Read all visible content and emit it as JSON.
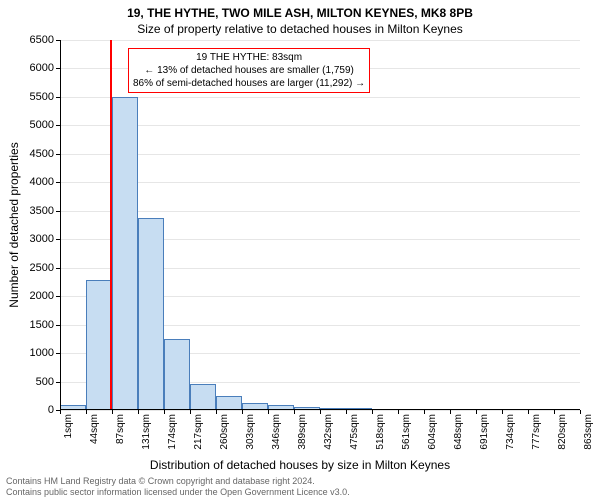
{
  "title_main": "19, THE HYTHE, TWO MILE ASH, MILTON KEYNES, MK8 8PB",
  "title_sub": "Size of property relative to detached houses in Milton Keynes",
  "y_axis_title": "Number of detached properties",
  "x_axis_title": "Distribution of detached houses by size in Milton Keynes",
  "footer_line1": "Contains HM Land Registry data © Crown copyright and database right 2024.",
  "footer_line2": "Contains public sector information licensed under the Open Government Licence v3.0.",
  "chart": {
    "type": "histogram",
    "background_color": "#ffffff",
    "grid_color": "#e6e6e6",
    "bar_fill": "#c7ddf2",
    "bar_stroke": "#4a7ebb",
    "highlight_line_color": "#ff0000",
    "annotation_border": "#ff0000",
    "ylim": [
      0,
      6500
    ],
    "y_ticks": [
      0,
      500,
      1000,
      1500,
      2000,
      2500,
      3000,
      3500,
      4000,
      4500,
      5000,
      5500,
      6000,
      6500
    ],
    "x_ticks": [
      "1sqm",
      "44sqm",
      "87sqm",
      "131sqm",
      "174sqm",
      "217sqm",
      "260sqm",
      "303sqm",
      "346sqm",
      "389sqm",
      "432sqm",
      "475sqm",
      "518sqm",
      "561sqm",
      "604sqm",
      "648sqm",
      "691sqm",
      "734sqm",
      "777sqm",
      "820sqm",
      "863sqm"
    ],
    "values": [
      80,
      2280,
      5500,
      3380,
      1250,
      450,
      250,
      120,
      80,
      50,
      40,
      30,
      0,
      0,
      0,
      0,
      0,
      0,
      0,
      0
    ],
    "highlight_x_index": 2,
    "tick_fontsize": 11,
    "title_fontsize": 12
  },
  "annotation": {
    "line1": "19 THE HYTHE: 83sqm",
    "line2": "← 13% of detached houses are smaller (1,759)",
    "line3": "86% of semi-detached houses are larger (11,292) →"
  }
}
